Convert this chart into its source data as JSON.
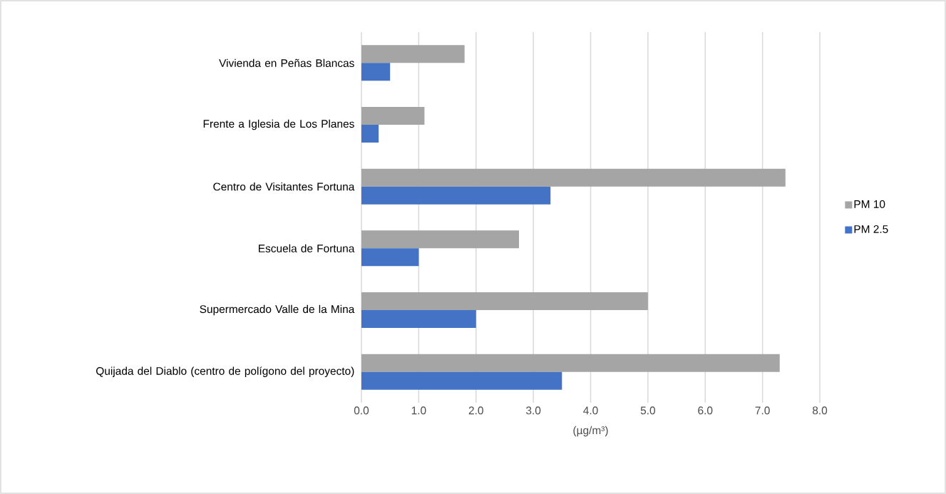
{
  "chart_data": {
    "type": "bar",
    "orientation": "horizontal",
    "xlabel": "(µg/m³)",
    "categories": [
      "Vivienda en Peñas Blancas",
      "Frente a Iglesia de Los Planes",
      "Centro de Visitantes Fortuna",
      "Escuela de Fortuna",
      "Supermercado Valle de la Mina",
      "Quijada del Diablo (centro de polígono del proyecto)"
    ],
    "series": [
      {
        "name": "PM 10",
        "color": "#a5a5a5",
        "values": [
          1.8,
          1.1,
          7.4,
          2.75,
          5.0,
          7.3
        ]
      },
      {
        "name": "PM 2.5",
        "color": "#4472c4",
        "values": [
          0.5,
          0.3,
          3.3,
          1.0,
          2.0,
          3.5
        ]
      }
    ],
    "xlim": [
      0,
      8
    ],
    "xticks": [
      {
        "value": 0,
        "label": "0.0"
      },
      {
        "value": 1,
        "label": "1.0"
      },
      {
        "value": 2,
        "label": "2.0"
      },
      {
        "value": 3,
        "label": "3.0"
      },
      {
        "value": 4,
        "label": "4.0"
      },
      {
        "value": 5,
        "label": "5.0"
      },
      {
        "value": 6,
        "label": "6.0"
      },
      {
        "value": 7,
        "label": "7.0"
      },
      {
        "value": 8,
        "label": "8.0"
      }
    ],
    "grid": "x",
    "legend": "right"
  }
}
